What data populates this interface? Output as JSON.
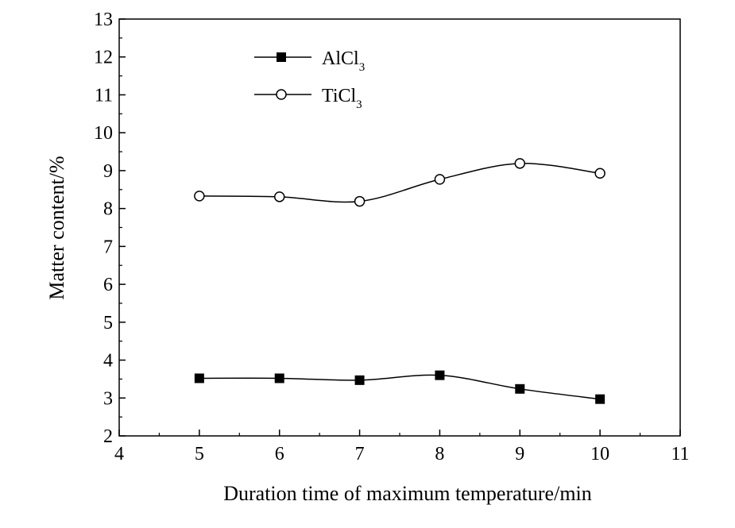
{
  "chart_data": {
    "type": "line",
    "title": "",
    "xlabel": "Duration time of maximum temperature/min",
    "ylabel": "Matter content/%",
    "xlim": [
      4,
      11
    ],
    "ylim": [
      2,
      13
    ],
    "xticks": [
      4,
      5,
      6,
      7,
      8,
      9,
      10,
      11
    ],
    "yticks": [
      2,
      3,
      4,
      5,
      6,
      7,
      8,
      9,
      10,
      11,
      12,
      13
    ],
    "grid": false,
    "legend_position": "top-left",
    "series": [
      {
        "name": "AlCl3",
        "legend_main": "AlCl",
        "legend_sub": "3",
        "marker": "filled-square",
        "x": [
          5,
          6,
          7,
          8,
          9,
          10
        ],
        "y": [
          3.52,
          3.52,
          3.47,
          3.6,
          3.24,
          2.97
        ]
      },
      {
        "name": "TiCl3",
        "legend_main": "TiCl",
        "legend_sub": "3",
        "marker": "open-circle",
        "x": [
          5,
          6,
          7,
          8,
          9,
          10
        ],
        "y": [
          8.33,
          8.31,
          8.19,
          8.77,
          9.19,
          8.93
        ]
      }
    ]
  }
}
